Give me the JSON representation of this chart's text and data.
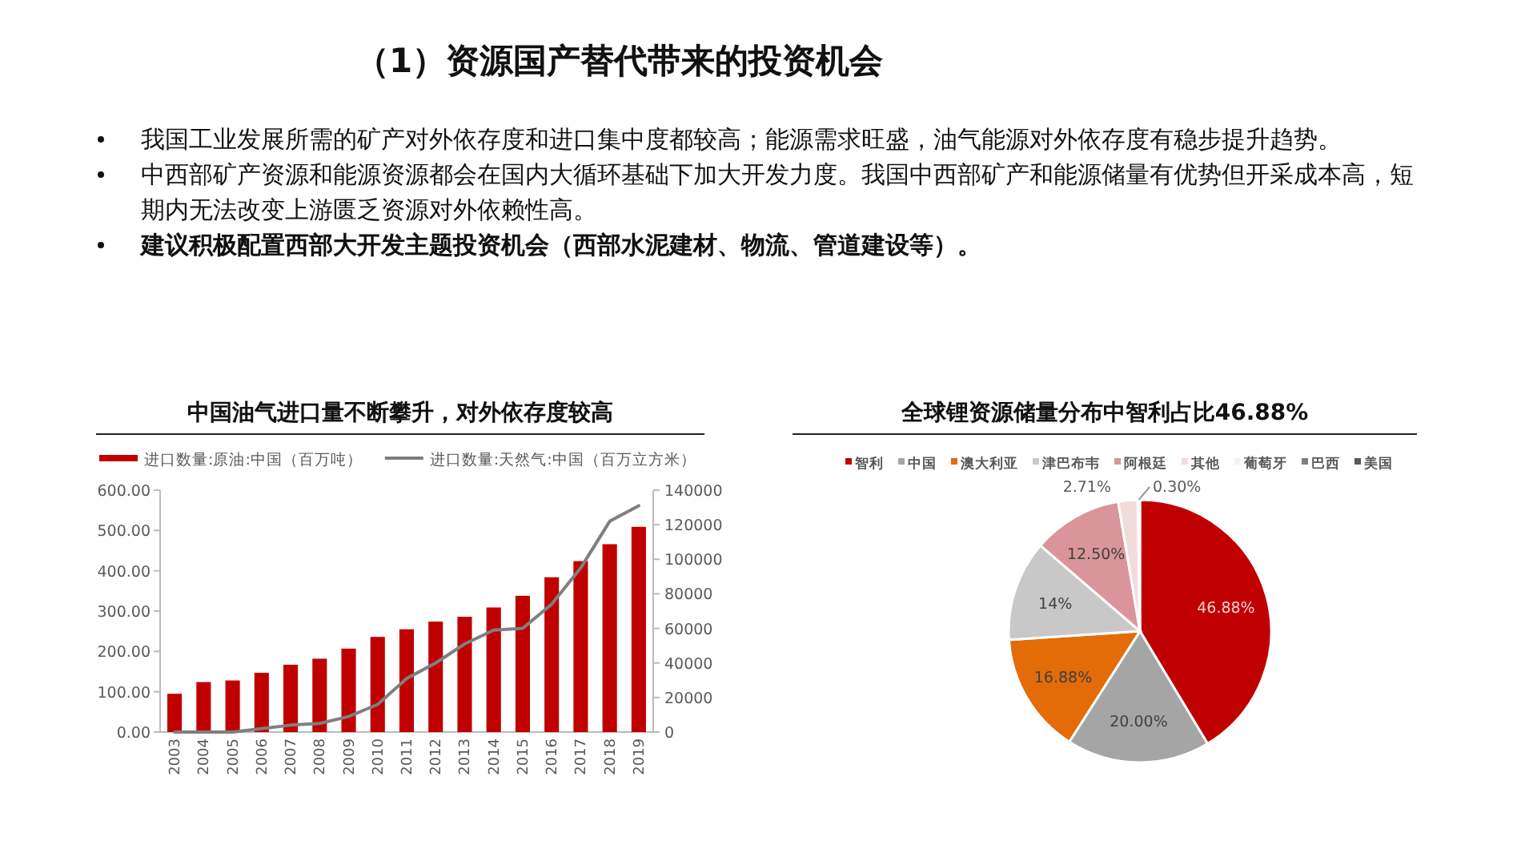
{
  "chart_data": [
    {
      "type": "other",
      "title": "（1）资源国产替代带来的投资机会",
      "annotations": [
        "我国工业发展所需的矿产对外依存度和进口集中度都较高；能源需求旺盛，油气能源对外依存度有稳步提升趋势。",
        "中西部矿产资源和能源资源都会在国内大循环基础下加大开发力度。我国中西部矿产和能源储量有优势但开采成本高，短期内无法改变上游匮乏资源对外依赖性高。",
        "建议积极配置西部大开发主题投资机会（西部水泥建材、物流、管道建设等）。"
      ]
    },
    {
      "type": "bar",
      "title": "中国油气进口量不断攀升，对外依存度较高",
      "legend": "top",
      "categories": [
        "2003",
        "2004",
        "2005",
        "2006",
        "2007",
        "2008",
        "2009",
        "2010",
        "2011",
        "2012",
        "2013",
        "2014",
        "2015",
        "2016",
        "2017",
        "2018",
        "2019"
      ],
      "series": [
        {
          "name": "进口数量:原油:中国（百万吨）",
          "type": "bar",
          "color": "#c00000",
          "values": [
            95,
            124,
            128,
            147,
            167,
            182,
            207,
            236,
            255,
            274,
            286,
            309,
            338,
            384,
            424,
            466,
            509
          ]
        },
        {
          "name": "进口数量:天然气:中国（百万立方米）",
          "type": "line",
          "axis": "y2",
          "color": "#7f7f7f",
          "values": [
            0,
            0,
            0,
            2000,
            4000,
            5000,
            9000,
            16000,
            31000,
            40000,
            51000,
            59000,
            60000,
            74000,
            95000,
            122000,
            131000
          ]
        }
      ],
      "ylim": [
        0,
        600
      ],
      "yticks": [
        {
          "value": 0,
          "label": "0.00"
        },
        {
          "value": 100,
          "label": "100.00"
        },
        {
          "value": 200,
          "label": "200.00"
        },
        {
          "value": 300,
          "label": "300.00"
        },
        {
          "value": 400,
          "label": "400.00"
        },
        {
          "value": 500,
          "label": "500.00"
        },
        {
          "value": 600,
          "label": "600.00"
        }
      ],
      "y2lim": [
        0,
        140000
      ],
      "y2ticks": [
        0,
        20000,
        40000,
        60000,
        80000,
        100000,
        120000,
        140000
      ]
    },
    {
      "type": "pie",
      "title": "全球锂资源储量分布中智利占比46.88%",
      "legend": "top",
      "categories": [
        "智利",
        "中国",
        "澳大利亚",
        "津巴布韦",
        "阿根廷",
        "其他",
        "葡萄牙",
        "巴西",
        "美国"
      ],
      "values": [
        46.88,
        20.0,
        16.88,
        14,
        12.5,
        2.71,
        0.3,
        null,
        null
      ],
      "colors": [
        "#c00000",
        "#a5a5a5",
        "#e36c09",
        "#c8c8c8",
        "#d9959a",
        "#f2dcdb",
        "#f7f0f0",
        "#7f7f7f",
        "#595959"
      ],
      "value_labels": [
        "46.88%",
        "20.00%",
        "16.88%",
        "14%",
        "12.50%",
        "2.71%",
        "0.30%",
        null,
        null
      ]
    }
  ]
}
